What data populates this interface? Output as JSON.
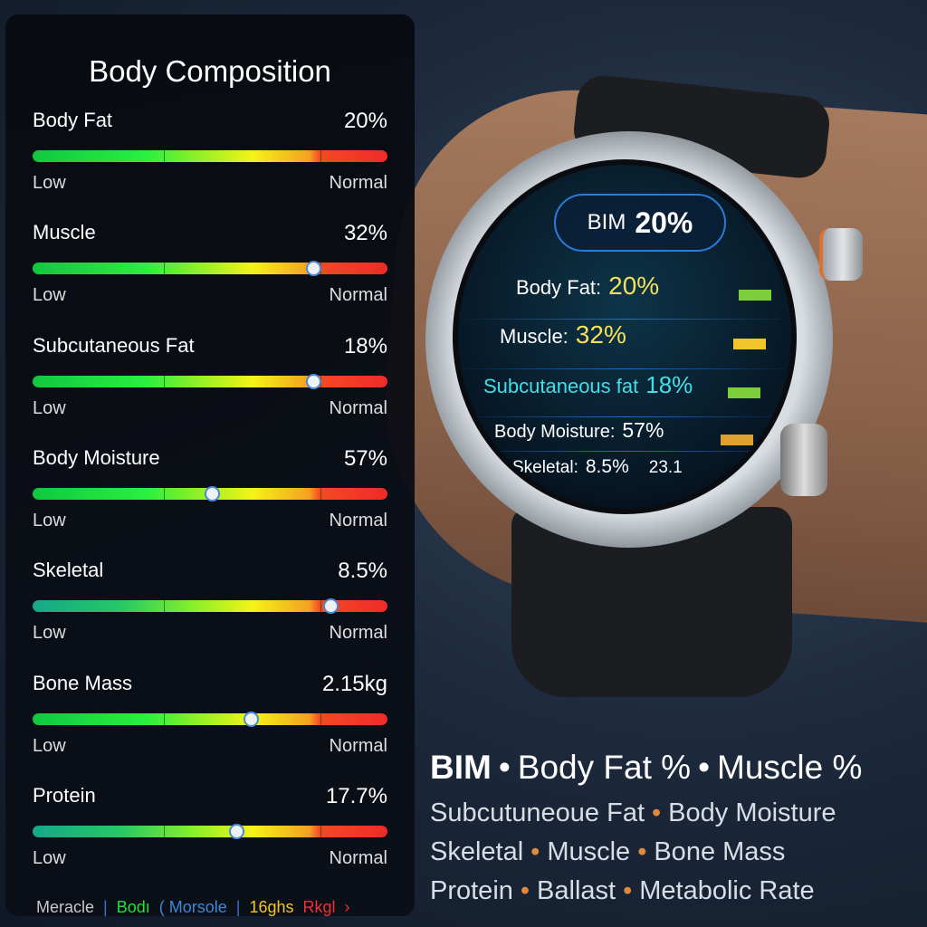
{
  "panel": {
    "title": "Body Composition",
    "metrics": [
      {
        "label": "Body Fat",
        "value": "20%",
        "low": "Low",
        "high": "Normal",
        "level": null,
        "teal": false
      },
      {
        "label": "Muscle",
        "value": "32%",
        "low": "Low",
        "high": "Normal",
        "level": 0.79,
        "teal": false
      },
      {
        "label": "Subcutaneous Fat",
        "value": "18%",
        "low": "Low",
        "high": "Normal",
        "level": 0.79,
        "teal": false
      },
      {
        "label": "Body Moisture",
        "value": "57%",
        "low": "Low",
        "high": "Normal",
        "level": 0.505,
        "teal": false
      },
      {
        "label": "Skeletal",
        "value": "8.5%",
        "low": "Low",
        "high": "Normal",
        "level": 0.84,
        "teal": true
      },
      {
        "label": "Bone Mass",
        "value": "2.15kg",
        "low": "Low",
        "high": "Normal",
        "level": 0.615,
        "teal": false
      },
      {
        "label": "Protein",
        "value": "17.7%",
        "low": "Low",
        "high": "Normal",
        "level": 0.575,
        "teal": true
      }
    ],
    "legend": [
      {
        "text": "Meracle",
        "color": "#c8c8c8"
      },
      {
        "text": "|",
        "color": "#3a6fd0"
      },
      {
        "text": "Bodı",
        "color": "#22e03a"
      },
      {
        "text": "( Morsole",
        "color": "#3a8ad8"
      },
      {
        "text": "|",
        "color": "#3a6fd0"
      },
      {
        "text": "16ghs",
        "color": "#f5c52a"
      },
      {
        "text": "Rkgl",
        "color": "#f03030"
      },
      {
        "text": "›",
        "color": "#f03030"
      }
    ]
  },
  "watch": {
    "pill_label": "BIM",
    "pill_value": "20%",
    "rows": [
      {
        "label": "Body  Fat:",
        "value": "20%",
        "tag": "#7ccf3a"
      },
      {
        "label": "Muscle:",
        "value": "32%",
        "tag": "#f0c52a"
      },
      {
        "label": "Subcutaneous fat",
        "value": "18%",
        "tag": "#7ccf3a"
      },
      {
        "label": "Body Moisture:",
        "value": "57%",
        "tag": "#e0a030"
      },
      {
        "label": "Skeletal:",
        "value": "8.5%",
        "extra": "23.1"
      }
    ]
  },
  "features": {
    "line1": [
      "BIM",
      "Body Fat %",
      "Muscle %"
    ],
    "line2": [
      "Subcutuneoue Fat",
      "Body Moisture"
    ],
    "line3": [
      "Skeletal",
      "Muscle",
      "Bone Mass"
    ],
    "line4": [
      "Protein",
      "Ballast",
      "Metabolic Rate"
    ]
  }
}
